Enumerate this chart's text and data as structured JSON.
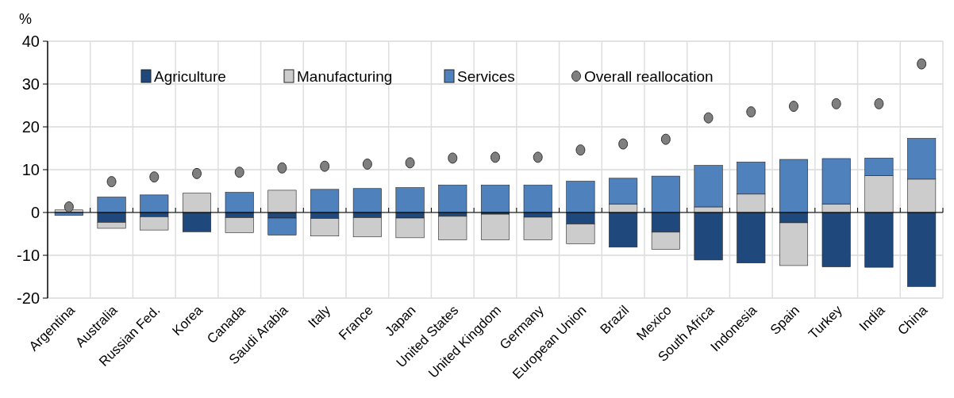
{
  "chart_data": {
    "type": "bar",
    "stacked": true,
    "ylabel": "%",
    "categories": [
      "Argentina",
      "Australia",
      "Russian Fed.",
      "Korea",
      "Canada",
      "Saudi Arabia",
      "Italy",
      "France",
      "Japan",
      "United States",
      "United Kingdom",
      "Germany",
      "European Union",
      "Brazil",
      "Mexico",
      "South Africa",
      "Indonesia",
      "Spain",
      "Turkey",
      "India",
      "China"
    ],
    "series": [
      {
        "name": "Agriculture",
        "color": "#1f497d",
        "values": [
          0,
          -2.3,
          -1.0,
          -4.5,
          -1.2,
          -1.3,
          -1.4,
          -1.2,
          -1.3,
          -0.9,
          -0.4,
          -1.1,
          -2.7,
          -8.1,
          -4.6,
          -11.1,
          -11.8,
          -2.4,
          -12.7,
          -12.8,
          -17.3
        ]
      },
      {
        "name": "Manufacturing",
        "color": "#cccccc",
        "values": [
          0.6,
          -1.4,
          -3.1,
          4.5,
          -3.5,
          5.2,
          -4.1,
          -4.5,
          -4.6,
          -5.5,
          -6.0,
          -5.3,
          -4.6,
          2.0,
          -4.0,
          1.3,
          4.3,
          -10.0,
          2.0,
          8.6,
          7.8
        ]
      },
      {
        "name": "Services",
        "color": "#4f81bd",
        "values": [
          -0.7,
          3.6,
          4.1,
          0,
          4.7,
          -4.0,
          5.4,
          5.6,
          5.8,
          6.4,
          6.4,
          6.4,
          7.3,
          6.0,
          8.5,
          9.7,
          7.5,
          12.4,
          10.6,
          4.1,
          9.5
        ]
      },
      {
        "name": "Overall reallocation",
        "type": "scatter",
        "color": "#7f7f7f",
        "values": [
          1.3,
          7.2,
          8.3,
          9.1,
          9.4,
          10.4,
          10.8,
          11.3,
          11.6,
          12.7,
          12.9,
          12.9,
          14.6,
          16.0,
          17.1,
          22.1,
          23.5,
          24.8,
          25.4,
          25.4,
          34.7
        ]
      }
    ],
    "ylim": [
      -20,
      40
    ],
    "yticks": [
      -20,
      -10,
      0,
      10,
      20,
      30,
      40
    ],
    "grid": true,
    "legend": "top",
    "marker": "circle"
  }
}
